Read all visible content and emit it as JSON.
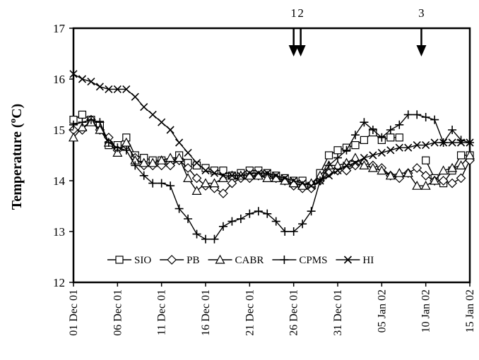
{
  "chart_data": {
    "type": "line",
    "ylabel": "Temperature (",
    "ylabel_sup": "o",
    "ylabel_unit": "C)",
    "ylim": [
      12,
      17
    ],
    "yticks": [
      12,
      13,
      14,
      15,
      16,
      17
    ],
    "x_start": "01 Dec 01",
    "x_range_days": [
      0,
      45
    ],
    "xticks": [
      {
        "label": "01 Dec 01",
        "day": 0
      },
      {
        "label": "06 Dec 01",
        "day": 5
      },
      {
        "label": "11 Dec 01",
        "day": 10
      },
      {
        "label": "16 Dec 01",
        "day": 15
      },
      {
        "label": "21 Dec 01",
        "day": 20
      },
      {
        "label": "26 Dec 01",
        "day": 25
      },
      {
        "label": "31 Dec 01",
        "day": 30
      },
      {
        "label": "05 Jan 02",
        "day": 35
      },
      {
        "label": "10 Jan 02",
        "day": 40
      },
      {
        "label": "15 Jan 02",
        "day": 45
      }
    ],
    "annotations": [
      {
        "label": "1",
        "day": 25.0
      },
      {
        "label": "2",
        "day": 25.8
      },
      {
        "label": "3",
        "day": 39.5
      }
    ],
    "grid": "none",
    "legend_position": "bottom-center",
    "series": [
      {
        "name": "SIO",
        "marker": "square",
        "values": [
          [
            0,
            15.2
          ],
          [
            1,
            15.3
          ],
          [
            2,
            15.2
          ],
          [
            3,
            15.1
          ],
          [
            4,
            14.7
          ],
          [
            5,
            14.7
          ],
          [
            6,
            14.85
          ],
          [
            7,
            14.5
          ],
          [
            8,
            14.45
          ],
          [
            9,
            14.4
          ],
          [
            10,
            14.4
          ],
          [
            11,
            14.35
          ],
          [
            12,
            14.5
          ],
          [
            13,
            14.35
          ],
          [
            14,
            14.3
          ],
          [
            15,
            14.25
          ],
          [
            16,
            14.2
          ],
          [
            17,
            14.2
          ],
          [
            18,
            14.1
          ],
          [
            19,
            14.15
          ],
          [
            20,
            14.2
          ],
          [
            21,
            14.2
          ],
          [
            22,
            14.15
          ],
          [
            23,
            14.1
          ],
          [
            24,
            14.05
          ],
          [
            25,
            14.0
          ],
          [
            26,
            14.0
          ],
          [
            27,
            13.9
          ],
          [
            28,
            14.15
          ],
          [
            29,
            14.5
          ],
          [
            30,
            14.6
          ],
          [
            31,
            14.65
          ],
          [
            32,
            14.7
          ],
          [
            33,
            14.8
          ],
          [
            34,
            14.95
          ],
          [
            35,
            14.8
          ],
          [
            36,
            14.85
          ],
          [
            37,
            14.85
          ],
          [
            38,
            null
          ],
          [
            39,
            null
          ],
          [
            40,
            14.4
          ],
          [
            41,
            14.05
          ],
          [
            42,
            13.95
          ],
          [
            43,
            14.2
          ],
          [
            44,
            14.5
          ],
          [
            45,
            14.5
          ]
        ]
      },
      {
        "name": "PB",
        "marker": "diamond",
        "values": [
          [
            0,
            15.0
          ],
          [
            1,
            15.0
          ],
          [
            2,
            15.2
          ],
          [
            3,
            15.0
          ],
          [
            4,
            14.85
          ],
          [
            5,
            14.6
          ],
          [
            6,
            14.7
          ],
          [
            7,
            14.45
          ],
          [
            8,
            14.3
          ],
          [
            9,
            14.3
          ],
          [
            10,
            14.3
          ],
          [
            11,
            14.3
          ],
          [
            12,
            14.4
          ],
          [
            13,
            14.25
          ],
          [
            14,
            14.05
          ],
          [
            15,
            13.9
          ],
          [
            16,
            13.85
          ],
          [
            17,
            13.75
          ],
          [
            18,
            13.95
          ],
          [
            19,
            14.05
          ],
          [
            20,
            14.05
          ],
          [
            21,
            14.1
          ],
          [
            22,
            14.1
          ],
          [
            23,
            14.05
          ],
          [
            24,
            14.0
          ],
          [
            25,
            13.9
          ],
          [
            26,
            13.85
          ],
          [
            27,
            13.85
          ],
          [
            28,
            14.0
          ],
          [
            29,
            14.15
          ],
          [
            30,
            14.2
          ],
          [
            31,
            14.2
          ],
          [
            32,
            14.3
          ],
          [
            33,
            14.35
          ],
          [
            34,
            14.3
          ],
          [
            35,
            14.25
          ],
          [
            36,
            14.1
          ],
          [
            37,
            14.05
          ],
          [
            38,
            14.15
          ],
          [
            39,
            14.25
          ],
          [
            40,
            14.1
          ],
          [
            41,
            14.0
          ],
          [
            42,
            14.0
          ],
          [
            43,
            13.95
          ],
          [
            44,
            14.05
          ],
          [
            45,
            14.4
          ]
        ]
      },
      {
        "name": "CABR",
        "marker": "triangle",
        "values": [
          [
            0,
            14.85
          ],
          [
            1,
            15.05
          ],
          [
            2,
            15.15
          ],
          [
            3,
            15.0
          ],
          [
            4,
            14.75
          ],
          [
            5,
            14.55
          ],
          [
            6,
            14.75
          ],
          [
            7,
            14.4
          ],
          [
            8,
            14.35
          ],
          [
            9,
            14.35
          ],
          [
            10,
            14.4
          ],
          [
            11,
            14.45
          ],
          [
            12,
            14.45
          ],
          [
            13,
            14.05
          ],
          [
            14,
            13.8
          ],
          [
            15,
            13.95
          ],
          [
            16,
            13.95
          ],
          [
            17,
            14.05
          ],
          [
            18,
            14.1
          ],
          [
            19,
            14.1
          ],
          [
            20,
            14.1
          ],
          [
            21,
            14.1
          ],
          [
            22,
            14.05
          ],
          [
            23,
            14.05
          ],
          [
            24,
            14.0
          ],
          [
            25,
            13.95
          ],
          [
            26,
            13.9
          ],
          [
            27,
            13.95
          ],
          [
            28,
            14.1
          ],
          [
            29,
            14.3
          ],
          [
            30,
            14.3
          ],
          [
            31,
            14.35
          ],
          [
            32,
            14.45
          ],
          [
            33,
            14.3
          ],
          [
            34,
            14.25
          ],
          [
            35,
            14.2
          ],
          [
            36,
            14.1
          ],
          [
            37,
            14.15
          ],
          [
            38,
            14.15
          ],
          [
            39,
            13.9
          ],
          [
            40,
            13.9
          ],
          [
            41,
            14.0
          ],
          [
            42,
            14.2
          ],
          [
            43,
            14.25
          ],
          [
            44,
            14.3
          ],
          [
            45,
            14.5
          ]
        ]
      },
      {
        "name": "CPMS",
        "marker": "plus",
        "values": [
          [
            0,
            15.1
          ],
          [
            1,
            15.15
          ],
          [
            2,
            15.2
          ],
          [
            3,
            15.15
          ],
          [
            4,
            14.75
          ],
          [
            5,
            14.65
          ],
          [
            6,
            14.6
          ],
          [
            7,
            14.3
          ],
          [
            8,
            14.1
          ],
          [
            9,
            13.95
          ],
          [
            10,
            13.95
          ],
          [
            11,
            13.9
          ],
          [
            12,
            13.45
          ],
          [
            13,
            13.25
          ],
          [
            14,
            12.95
          ],
          [
            15,
            12.85
          ],
          [
            16,
            12.85
          ],
          [
            17,
            13.1
          ],
          [
            18,
            13.2
          ],
          [
            19,
            13.25
          ],
          [
            20,
            13.35
          ],
          [
            21,
            13.4
          ],
          [
            22,
            13.35
          ],
          [
            23,
            13.2
          ],
          [
            24,
            13.0
          ],
          [
            25,
            13.0
          ],
          [
            26,
            13.15
          ],
          [
            27,
            13.4
          ],
          [
            28,
            14.0
          ],
          [
            29,
            14.3
          ],
          [
            30,
            14.45
          ],
          [
            31,
            14.6
          ],
          [
            32,
            14.9
          ],
          [
            33,
            15.15
          ],
          [
            34,
            15.0
          ],
          [
            35,
            14.85
          ],
          [
            36,
            15.0
          ],
          [
            37,
            15.1
          ],
          [
            38,
            15.3
          ],
          [
            39,
            15.3
          ],
          [
            40,
            15.25
          ],
          [
            41,
            15.2
          ],
          [
            42,
            14.75
          ],
          [
            43,
            15.0
          ],
          [
            44,
            14.8
          ],
          [
            45,
            14.75
          ]
        ]
      },
      {
        "name": "HI",
        "marker": "x",
        "values": [
          [
            0,
            16.1
          ],
          [
            1,
            16.0
          ],
          [
            2,
            15.95
          ],
          [
            3,
            15.85
          ],
          [
            4,
            15.8
          ],
          [
            5,
            15.8
          ],
          [
            6,
            15.8
          ],
          [
            7,
            15.65
          ],
          [
            8,
            15.45
          ],
          [
            9,
            15.3
          ],
          [
            10,
            15.15
          ],
          [
            11,
            15.0
          ],
          [
            12,
            14.75
          ],
          [
            13,
            14.55
          ],
          [
            14,
            14.35
          ],
          [
            15,
            14.2
          ],
          [
            16,
            14.15
          ],
          [
            17,
            14.1
          ],
          [
            18,
            14.1
          ],
          [
            19,
            14.1
          ],
          [
            20,
            14.15
          ],
          [
            21,
            14.15
          ],
          [
            22,
            14.15
          ],
          [
            23,
            14.1
          ],
          [
            24,
            14.05
          ],
          [
            25,
            14.0
          ],
          [
            26,
            13.95
          ],
          [
            27,
            13.9
          ],
          [
            28,
            14.0
          ],
          [
            29,
            14.1
          ],
          [
            30,
            14.2
          ],
          [
            31,
            14.3
          ],
          [
            32,
            14.35
          ],
          [
            33,
            14.45
          ],
          [
            34,
            14.5
          ],
          [
            35,
            14.55
          ],
          [
            36,
            14.6
          ],
          [
            37,
            14.65
          ],
          [
            38,
            14.65
          ],
          [
            39,
            14.7
          ],
          [
            40,
            14.7
          ],
          [
            41,
            14.75
          ],
          [
            42,
            14.75
          ],
          [
            43,
            14.75
          ],
          [
            44,
            14.75
          ],
          [
            45,
            14.75
          ]
        ]
      }
    ]
  }
}
